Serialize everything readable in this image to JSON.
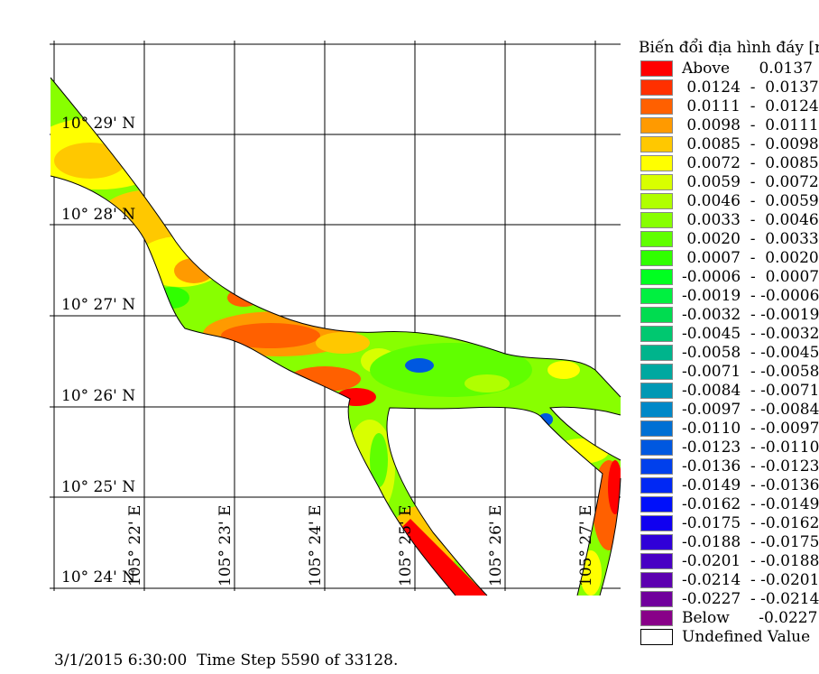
{
  "map": {
    "latitude_labels": [
      "10° 29' N",
      "10° 28' N",
      "10° 27' N",
      "10° 26' N",
      "10° 25' N",
      "10° 24' N"
    ],
    "longitude_labels": [
      "105° 22' E",
      "105° 23' E",
      "105° 24' E",
      "105° 25' E",
      "105° 26' E",
      "105° 27' E"
    ]
  },
  "legend": {
    "title": "Biến đổi địa hình đáy [m]",
    "items": [
      {
        "label": "Above      0.0137",
        "color": "#ff0000"
      },
      {
        "label": " 0.0124  -  0.0137",
        "color": "#ff3000"
      },
      {
        "label": " 0.0111  -  0.0124",
        "color": "#ff6000"
      },
      {
        "label": " 0.0098  -  0.0111",
        "color": "#ff9a00"
      },
      {
        "label": " 0.0085  -  0.0098",
        "color": "#ffc800"
      },
      {
        "label": " 0.0072  -  0.0085",
        "color": "#ffff00"
      },
      {
        "label": " 0.0059  -  0.0072",
        "color": "#d8ff00"
      },
      {
        "label": " 0.0046  -  0.0059",
        "color": "#b0ff00"
      },
      {
        "label": " 0.0033  -  0.0046",
        "color": "#88ff00"
      },
      {
        "label": " 0.0020  -  0.0033",
        "color": "#60ff00"
      },
      {
        "label": " 0.0007  -  0.0020",
        "color": "#30ff00"
      },
      {
        "label": "-0.0006  -  0.0007",
        "color": "#00ff20"
      },
      {
        "label": "-0.0019  - -0.0006",
        "color": "#00f040"
      },
      {
        "label": "-0.0032  - -0.0019",
        "color": "#00dc50"
      },
      {
        "label": "-0.0045  - -0.0032",
        "color": "#00c870"
      },
      {
        "label": "-0.0058  - -0.0045",
        "color": "#00b48c"
      },
      {
        "label": "-0.0071  - -0.0058",
        "color": "#00a8a0"
      },
      {
        "label": "-0.0084  - -0.0071",
        "color": "#0098b4"
      },
      {
        "label": "-0.0097  - -0.0084",
        "color": "#0088c8"
      },
      {
        "label": "-0.0110  - -0.0097",
        "color": "#0070d4"
      },
      {
        "label": "-0.0123  - -0.0110",
        "color": "#0058e0"
      },
      {
        "label": "-0.0136  - -0.0123",
        "color": "#0040ec"
      },
      {
        "label": "-0.0149  - -0.0136",
        "color": "#0028f4"
      },
      {
        "label": "-0.0162  - -0.0149",
        "color": "#0010fa"
      },
      {
        "label": "-0.0175  - -0.0162",
        "color": "#1000f0"
      },
      {
        "label": "-0.0188  - -0.0175",
        "color": "#3000d8"
      },
      {
        "label": "-0.0201  - -0.0188",
        "color": "#4800c4"
      },
      {
        "label": "-0.0214  - -0.0201",
        "color": "#5c00b0"
      },
      {
        "label": "-0.0227  - -0.0214",
        "color": "#70009c"
      },
      {
        "label": "Below      -0.0227",
        "color": "#880088"
      },
      {
        "label": "Undefined Value",
        "color": "#ffffff"
      }
    ]
  },
  "status": "3/1/2015 6:30:00  Time Step 5590 of 33128."
}
